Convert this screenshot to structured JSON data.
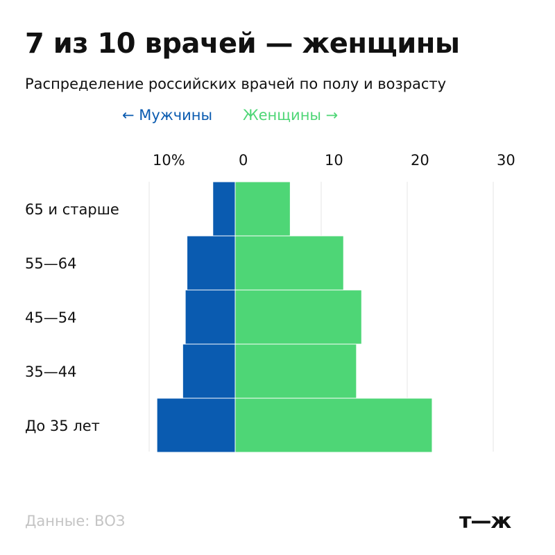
{
  "header": {
    "title": "7 из 10 врачей — женщины",
    "subtitle": "Распределение российских врачей по полу и возрасту"
  },
  "legend": {
    "men": "← Мужчины",
    "women": "Женщины →"
  },
  "footer": {
    "source": "Данные: ВОЗ",
    "logo": "т—ж"
  },
  "colors": {
    "men": "#0a5bb0",
    "women": "#4ed676",
    "grid": "#e6e6e6",
    "source_text": "#c4c4c4"
  },
  "chart_data": {
    "type": "bar",
    "orientation": "horizontal-diverging",
    "categories": [
      "65 и старше",
      "55—64",
      "45—54",
      "35—44",
      "До 35 лет"
    ],
    "series": [
      {
        "name": "Мужчины",
        "values": [
          2.6,
          5.6,
          5.8,
          6.1,
          9.1
        ]
      },
      {
        "name": "Женщины",
        "values": [
          6.4,
          12.6,
          14.7,
          14.1,
          22.9
        ]
      }
    ],
    "x_ticks": [
      {
        "value": -10,
        "label": "10%"
      },
      {
        "value": 0,
        "label": "0"
      },
      {
        "value": 10,
        "label": "10"
      },
      {
        "value": 20,
        "label": "20"
      },
      {
        "value": 30,
        "label": "30"
      }
    ],
    "xlim": [
      -10,
      30
    ],
    "grid": true,
    "legend_position": "top"
  }
}
